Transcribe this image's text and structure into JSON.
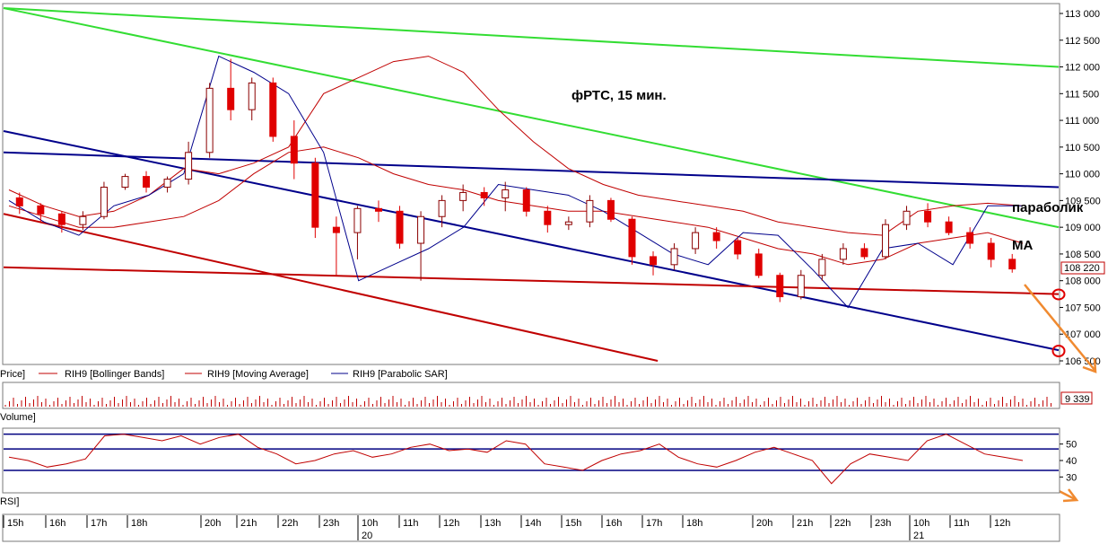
{
  "annotations": {
    "title": "фРТС, 15 мин.",
    "parabolic": "параболик",
    "ma": "MA"
  },
  "legend": {
    "price": "Price]",
    "bollinger": "RIH9 [Bollinger Bands]",
    "ma": "RIH9 [Moving Average]",
    "sar": "RIH9 [Parabolic SAR]"
  },
  "price_panel": {
    "current_price_label": "108 220",
    "yticks": [
      "113 000",
      "112 500",
      "112 000",
      "111 500",
      "111 000",
      "110 500",
      "110 000",
      "109 500",
      "109 000",
      "108 500",
      "108 000",
      "107 500",
      "107 000",
      "106 500"
    ]
  },
  "volume_panel": {
    "name": "Volume]",
    "current_value_label": "9 339"
  },
  "rsi_panel": {
    "name": "RSI]",
    "yticks": [
      "50",
      "40",
      "30"
    ]
  },
  "time_axis": {
    "hour_labels": [
      "15h",
      "16h",
      "17h",
      "18h",
      "20h",
      "21h",
      "22h",
      "23h",
      "10h",
      "11h",
      "12h",
      "13h",
      "14h",
      "15h",
      "16h",
      "17h",
      "18h",
      "20h",
      "21h",
      "22h",
      "23h",
      "10h",
      "11h",
      "12h"
    ],
    "day_labels": [
      "20",
      "21"
    ]
  },
  "colors": {
    "up_candle": "#ffffff",
    "down_candle": "#e00000",
    "bollinger": "#c00000",
    "sar": "#00008b",
    "green_trend": "#33dd33",
    "blue_trend": "#00008b",
    "red_trend": "#c00000",
    "orange_arrow": "#f08a30",
    "rsi_line": "#c00000",
    "rsi_levels": "#000080"
  },
  "chart_data": [
    {
      "type": "candlestick",
      "title": "фРТС, 15 мин.",
      "ylim": [
        106500,
        113000
      ],
      "last_price": 108220,
      "series": [
        {
          "name": "RIH9 [Bollinger Bands]",
          "values": [
            109700,
            109400,
            109200,
            109300,
            109600,
            110100,
            110000,
            110200,
            110500,
            111500,
            111800,
            112100,
            112200,
            111900,
            111200,
            110600,
            110100,
            109800,
            109600,
            109500,
            109400,
            109300,
            109100,
            109000,
            108900,
            108850,
            109300,
            109400,
            109450,
            109400
          ]
        },
        {
          "name": "RIH9 [Moving Average]",
          "values": [
            109400,
            109200,
            109000,
            109000,
            109100,
            109200,
            109500,
            110000,
            110400,
            110500,
            110300,
            110000,
            109800,
            109700,
            109500,
            109400,
            109300,
            109300,
            109200,
            109100,
            109000,
            108800,
            108600,
            108500,
            108300,
            108400,
            108700,
            108800,
            108900,
            108700
          ]
        },
        {
          "name": "RIH9 [Parabolic SAR]",
          "values": [
            109500,
            109100,
            108850,
            109400,
            109600,
            110000,
            112200,
            111900,
            111500,
            110400,
            108000,
            108300,
            108600,
            109000,
            109800,
            109700,
            109600,
            109300,
            108900,
            108500,
            108300,
            108900,
            108850,
            108200,
            107500,
            108600,
            108700,
            108300,
            109400,
            109400
          ]
        }
      ],
      "candles": [
        {
          "o": 109550,
          "h": 109650,
          "l": 109250,
          "c": 109400
        },
        {
          "o": 109400,
          "h": 109450,
          "l": 109100,
          "c": 109250
        },
        {
          "o": 109250,
          "h": 109300,
          "l": 108900,
          "c": 109050
        },
        {
          "o": 109050,
          "h": 109300,
          "l": 108950,
          "c": 109200
        },
        {
          "o": 109200,
          "h": 109850,
          "l": 109150,
          "c": 109750
        },
        {
          "o": 109750,
          "h": 110000,
          "l": 109700,
          "c": 109950
        },
        {
          "o": 109950,
          "h": 110050,
          "l": 109650,
          "c": 109750
        },
        {
          "o": 109750,
          "h": 109950,
          "l": 109650,
          "c": 109900
        },
        {
          "o": 109900,
          "h": 110600,
          "l": 109800,
          "c": 110400
        },
        {
          "o": 110400,
          "h": 111700,
          "l": 110300,
          "c": 111600
        },
        {
          "o": 111600,
          "h": 112150,
          "l": 111000,
          "c": 111200
        },
        {
          "o": 111200,
          "h": 111800,
          "l": 111000,
          "c": 111700
        },
        {
          "o": 111700,
          "h": 111800,
          "l": 110600,
          "c": 110700
        },
        {
          "o": 110700,
          "h": 111000,
          "l": 109900,
          "c": 110200
        },
        {
          "o": 110200,
          "h": 110300,
          "l": 108800,
          "c": 109000
        },
        {
          "o": 109000,
          "h": 109200,
          "l": 108100,
          "c": 108900
        },
        {
          "o": 108900,
          "h": 109400,
          "l": 108400,
          "c": 109350
        },
        {
          "o": 109350,
          "h": 109500,
          "l": 109100,
          "c": 109300
        },
        {
          "o": 109300,
          "h": 109400,
          "l": 108600,
          "c": 108700
        },
        {
          "o": 108700,
          "h": 109300,
          "l": 108000,
          "c": 109200
        },
        {
          "o": 109200,
          "h": 109600,
          "l": 109000,
          "c": 109500
        },
        {
          "o": 109500,
          "h": 109800,
          "l": 109300,
          "c": 109650
        },
        {
          "o": 109650,
          "h": 109750,
          "l": 109400,
          "c": 109550
        },
        {
          "o": 109550,
          "h": 109850,
          "l": 109300,
          "c": 109700
        },
        {
          "o": 109700,
          "h": 109750,
          "l": 109200,
          "c": 109300
        },
        {
          "o": 109300,
          "h": 109400,
          "l": 108900,
          "c": 109050
        },
        {
          "o": 109050,
          "h": 109200,
          "l": 108950,
          "c": 109100
        },
        {
          "o": 109100,
          "h": 109600,
          "l": 109000,
          "c": 109500
        },
        {
          "o": 109500,
          "h": 109550,
          "l": 109100,
          "c": 109150
        },
        {
          "o": 109150,
          "h": 109200,
          "l": 108300,
          "c": 108450
        },
        {
          "o": 108450,
          "h": 108550,
          "l": 108100,
          "c": 108300
        },
        {
          "o": 108300,
          "h": 108700,
          "l": 108200,
          "c": 108600
        },
        {
          "o": 108600,
          "h": 109000,
          "l": 108500,
          "c": 108900
        },
        {
          "o": 108900,
          "h": 109000,
          "l": 108600,
          "c": 108750
        },
        {
          "o": 108750,
          "h": 108800,
          "l": 108400,
          "c": 108500
        },
        {
          "o": 108500,
          "h": 108600,
          "l": 108050,
          "c": 108100
        },
        {
          "o": 108100,
          "h": 108150,
          "l": 107600,
          "c": 107700
        },
        {
          "o": 107700,
          "h": 108200,
          "l": 107650,
          "c": 108100
        },
        {
          "o": 108100,
          "h": 108500,
          "l": 108000,
          "c": 108400
        },
        {
          "o": 108400,
          "h": 108700,
          "l": 108300,
          "c": 108600
        },
        {
          "o": 108600,
          "h": 108700,
          "l": 108400,
          "c": 108450
        },
        {
          "o": 108450,
          "h": 109150,
          "l": 108400,
          "c": 109050
        },
        {
          "o": 109050,
          "h": 109400,
          "l": 108950,
          "c": 109300
        },
        {
          "o": 109300,
          "h": 109450,
          "l": 109000,
          "c": 109100
        },
        {
          "o": 109100,
          "h": 109200,
          "l": 108850,
          "c": 108900
        },
        {
          "o": 108900,
          "h": 109000,
          "l": 108600,
          "c": 108700
        },
        {
          "o": 108700,
          "h": 108800,
          "l": 108250,
          "c": 108400
        },
        {
          "o": 108400,
          "h": 108500,
          "l": 108150,
          "c": 108220
        }
      ],
      "trendlines": [
        {
          "name": "green-upper",
          "from": [
            0,
            113100
          ],
          "to": [
            1,
            112000
          ]
        },
        {
          "name": "green-lower",
          "from": [
            0,
            113100
          ],
          "to": [
            1,
            109000
          ]
        },
        {
          "name": "blue-upper",
          "from": [
            0,
            110400
          ],
          "to": [
            1,
            109750
          ]
        },
        {
          "name": "blue-lower",
          "from": [
            0,
            110800
          ],
          "to": [
            1,
            106700
          ]
        },
        {
          "name": "red-upper",
          "from": [
            0,
            108250
          ],
          "to": [
            1,
            107750
          ]
        },
        {
          "name": "red-lower",
          "from": [
            0,
            109250
          ],
          "to": [
            0.62,
            106500
          ]
        }
      ]
    },
    {
      "type": "bar",
      "title": "Volume",
      "last_value": 9339
    },
    {
      "type": "line",
      "title": "RSI",
      "ylim": [
        22,
        58
      ],
      "levels": [
        56,
        47,
        34
      ],
      "series": [
        {
          "name": "RSI",
          "values": [
            42,
            40,
            36,
            38,
            41,
            55,
            56,
            54,
            52,
            55,
            50,
            54,
            56,
            48,
            44,
            38,
            40,
            44,
            46,
            42,
            44,
            48,
            50,
            46,
            47,
            45,
            52,
            50,
            38,
            36,
            34,
            40,
            44,
            46,
            50,
            42,
            38,
            36,
            40,
            45,
            48,
            44,
            40,
            26,
            38,
            44,
            42,
            40,
            52,
            56,
            50,
            44,
            42,
            40
          ]
        }
      ]
    }
  ]
}
